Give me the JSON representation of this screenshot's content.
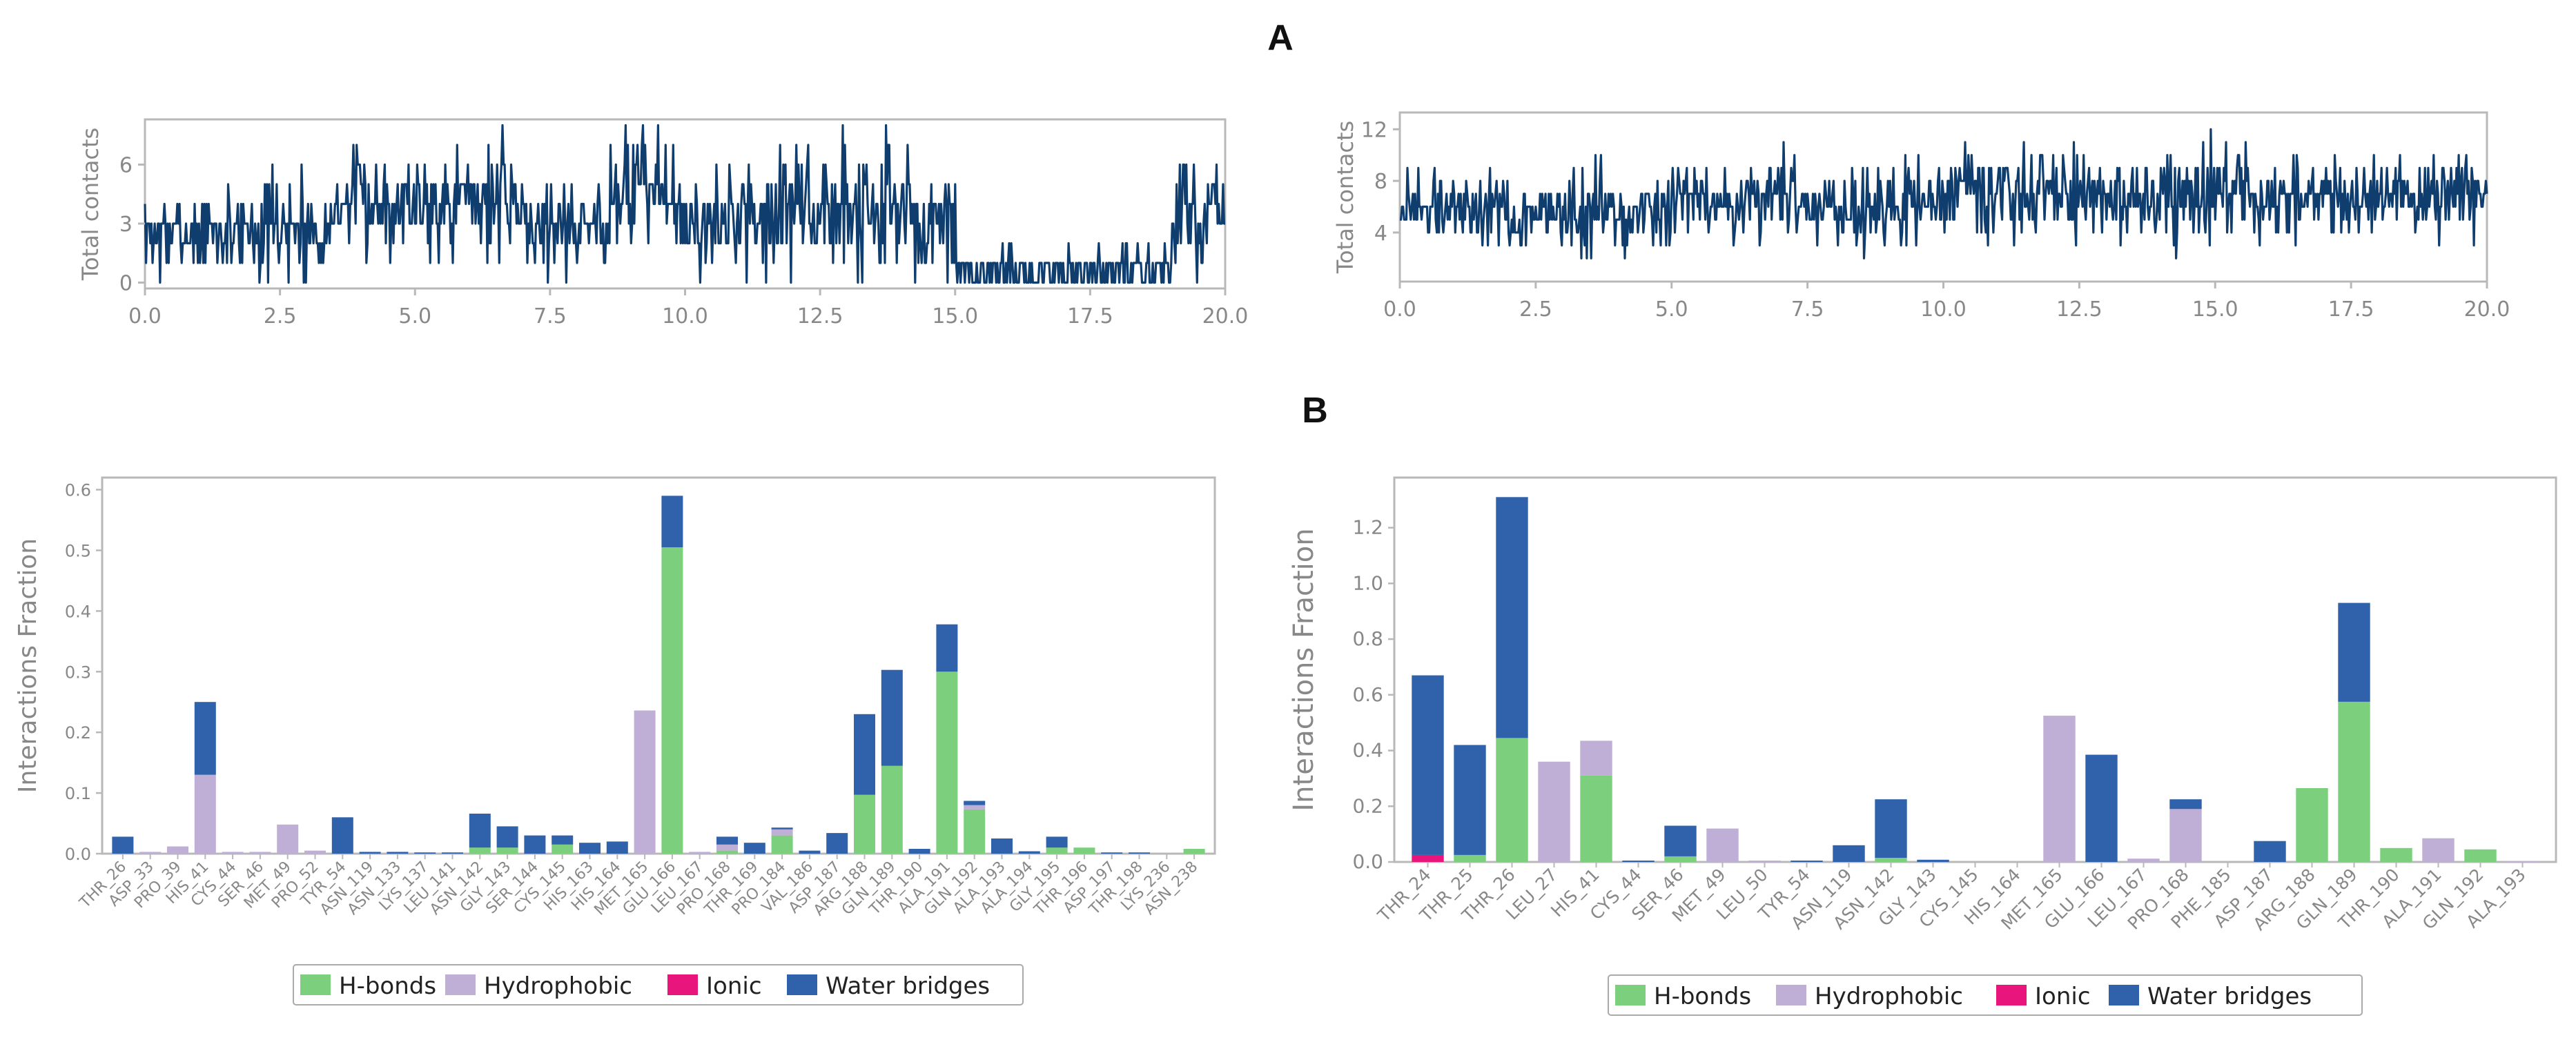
{
  "panels": {
    "A": "A",
    "B": "B"
  },
  "colors": {
    "line": "#0e3d6e",
    "hbonds": "#7ccf7c",
    "hydrophobic": "#bfaed6",
    "ionic": "#e8157d",
    "water": "#2f62ab",
    "frame": "#b8b8b8",
    "tick": "#888888"
  },
  "legend": {
    "hbonds": "H-bonds",
    "hydrophobic": "Hydrophobic",
    "ionic": "Ionic",
    "water": "Water bridges"
  },
  "chart_data": [
    {
      "id": "contacts-left",
      "type": "line",
      "title": "",
      "xlabel": "",
      "ylabel": "Total contacts",
      "xlim": [
        0,
        20
      ],
      "ylim": [
        -0.3,
        8.3
      ],
      "xticks": [
        0.0,
        2.5,
        5.0,
        7.5,
        10.0,
        12.5,
        15.0,
        17.5,
        20.0
      ],
      "xtick_labels": [
        "0.0",
        "2.5",
        "5.0",
        "7.5",
        "10.0",
        "12.5",
        "15.0",
        "17.5",
        "20.0"
      ],
      "yticks": [
        0,
        3,
        6
      ],
      "ytick_labels": [
        "0",
        "3",
        "6"
      ],
      "grid": false,
      "segments": [
        {
          "x0": 0.0,
          "x1": 1.5,
          "mean": 2.5,
          "sd": 1.0
        },
        {
          "x0": 1.5,
          "x1": 3.5,
          "mean": 2.8,
          "sd": 1.2
        },
        {
          "x0": 3.5,
          "x1": 7.0,
          "mean": 4.2,
          "sd": 1.4
        },
        {
          "x0": 7.0,
          "x1": 8.6,
          "mean": 3.0,
          "sd": 1.2
        },
        {
          "x0": 8.6,
          "x1": 9.8,
          "mean": 5.0,
          "sd": 1.5
        },
        {
          "x0": 9.8,
          "x1": 11.0,
          "mean": 3.0,
          "sd": 1.3
        },
        {
          "x0": 11.0,
          "x1": 14.2,
          "mean": 3.8,
          "sd": 1.6
        },
        {
          "x0": 14.2,
          "x1": 15.0,
          "mean": 2.5,
          "sd": 1.5
        },
        {
          "x0": 15.0,
          "x1": 19.0,
          "mean": 0.5,
          "sd": 0.6
        },
        {
          "x0": 19.0,
          "x1": 20.0,
          "mean": 3.5,
          "sd": 1.4
        }
      ]
    },
    {
      "id": "contacts-right",
      "type": "line",
      "title": "",
      "xlabel": "",
      "ylabel": "Total contacts",
      "xlim": [
        0,
        20
      ],
      "ylim": [
        0.2,
        13.3
      ],
      "xticks": [
        0.0,
        2.5,
        5.0,
        7.5,
        10.0,
        12.5,
        15.0,
        17.5,
        20.0
      ],
      "xtick_labels": [
        "0.0",
        "2.5",
        "5.0",
        "7.5",
        "10.0",
        "12.5",
        "15.0",
        "17.5",
        "20.0"
      ],
      "yticks": [
        4,
        8,
        12
      ],
      "ytick_labels": [
        "4",
        "8",
        "12"
      ],
      "grid": false,
      "segments": [
        {
          "x0": 0.0,
          "x1": 2.0,
          "mean": 6.0,
          "sd": 1.5
        },
        {
          "x0": 2.0,
          "x1": 5.0,
          "mean": 5.5,
          "sd": 1.7
        },
        {
          "x0": 5.0,
          "x1": 10.0,
          "mean": 6.2,
          "sd": 1.6
        },
        {
          "x0": 10.0,
          "x1": 15.0,
          "mean": 6.8,
          "sd": 1.7
        },
        {
          "x0": 15.0,
          "x1": 20.0,
          "mean": 7.0,
          "sd": 1.6
        }
      ]
    },
    {
      "id": "interactions-left",
      "type": "bar",
      "stacked": true,
      "title": "",
      "xlabel": "",
      "ylabel": "Interactions Fraction",
      "ylim": [
        0,
        0.62
      ],
      "yticks": [
        0.0,
        0.1,
        0.2,
        0.3,
        0.4,
        0.5,
        0.6
      ],
      "ytick_labels": [
        "0.0",
        "0.1",
        "0.2",
        "0.3",
        "0.4",
        "0.5",
        "0.6"
      ],
      "grid": false,
      "legend_position": "bottom-center",
      "categories": [
        "THR_26",
        "ASP_33",
        "PRO_39",
        "HIS_41",
        "CYS_44",
        "SER_46",
        "MET_49",
        "PRO_52",
        "TYR_54",
        "ASN_119",
        "ASN_133",
        "LYS_137",
        "LEU_141",
        "ASN_142",
        "GLY_143",
        "SER_144",
        "CYS_145",
        "HIS_163",
        "HIS_164",
        "MET_165",
        "GLU_166",
        "LEU_167",
        "PRO_168",
        "THR_169",
        "PRO_184",
        "VAL_186",
        "ASP_187",
        "ARG_188",
        "GLN_189",
        "THR_190",
        "ALA_191",
        "GLN_192",
        "ALA_193",
        "ALA_194",
        "GLY_195",
        "THR_196",
        "ASP_197",
        "THR_198",
        "LYS_236",
        "ASN_238"
      ],
      "series": [
        {
          "name": "H-bonds",
          "color_key": "hbonds",
          "values": [
            0,
            0,
            0,
            0,
            0,
            0,
            0,
            0,
            0,
            0,
            0,
            0,
            0,
            0.01,
            0.01,
            0,
            0.015,
            0,
            0,
            0,
            0.505,
            0,
            0.005,
            0,
            0.03,
            0,
            0,
            0.097,
            0.145,
            0,
            0.3,
            0.073,
            0,
            0,
            0.01,
            0.01,
            0,
            0,
            0,
            0.008
          ]
        },
        {
          "name": "Hydrophobic",
          "color_key": "hydrophobic",
          "values": [
            0,
            0.003,
            0.012,
            0.13,
            0.003,
            0.003,
            0.048,
            0.005,
            0,
            0,
            0,
            0,
            0,
            0,
            0,
            0,
            0,
            0,
            0,
            0.236,
            0,
            0.003,
            0.01,
            0,
            0.01,
            0,
            0,
            0,
            0,
            0,
            0,
            0.007,
            0,
            0,
            0,
            0,
            0,
            0,
            0,
            0
          ]
        },
        {
          "name": "Ionic",
          "color_key": "ionic",
          "values": [
            0,
            0,
            0,
            0,
            0,
            0,
            0,
            0,
            0,
            0,
            0,
            0,
            0,
            0,
            0,
            0,
            0,
            0,
            0,
            0,
            0,
            0,
            0,
            0,
            0,
            0,
            0,
            0,
            0,
            0,
            0,
            0,
            0,
            0,
            0,
            0,
            0,
            0,
            0,
            0
          ]
        },
        {
          "name": "Water bridges",
          "color_key": "water",
          "values": [
            0.028,
            0,
            0,
            0.12,
            0,
            0,
            0,
            0,
            0.06,
            0.003,
            0.003,
            0.002,
            0.002,
            0.056,
            0.035,
            0.03,
            0.015,
            0.018,
            0.02,
            0,
            0.085,
            0,
            0.013,
            0.018,
            0.003,
            0.005,
            0.034,
            0.133,
            0.158,
            0.008,
            0.078,
            0.007,
            0.025,
            0.004,
            0.018,
            0,
            0.002,
            0.002,
            0,
            0
          ]
        }
      ]
    },
    {
      "id": "interactions-right",
      "type": "bar",
      "stacked": true,
      "title": "",
      "xlabel": "",
      "ylabel": "Interactions Fraction",
      "ylim": [
        0,
        1.38
      ],
      "yticks": [
        0.0,
        0.2,
        0.4,
        0.6,
        0.8,
        1.0,
        1.2
      ],
      "ytick_labels": [
        "0.0",
        "0.2",
        "0.4",
        "0.6",
        "0.8",
        "1.0",
        "1.2"
      ],
      "grid": false,
      "legend_position": "bottom-center",
      "categories": [
        "THR_24",
        "THR_25",
        "THR_26",
        "LEU_27",
        "HIS_41",
        "CYS_44",
        "SER_46",
        "MET_49",
        "LEU_50",
        "TYR_54",
        "ASN_119",
        "ASN_142",
        "GLY_143",
        "CYS_145",
        "HIS_164",
        "MET_165",
        "GLU_166",
        "LEU_167",
        "PRO_168",
        "PHE_185",
        "ASP_187",
        "ARG_188",
        "GLN_189",
        "THR_190",
        "ALA_191",
        "GLN_192",
        "ALA_193"
      ],
      "series": [
        {
          "name": "H-bonds",
          "color_key": "hbonds",
          "values": [
            0,
            0.025,
            0.445,
            0,
            0.31,
            0,
            0.02,
            0,
            0,
            0,
            0,
            0.015,
            0,
            0,
            0,
            0,
            0,
            0,
            0,
            0,
            0,
            0.265,
            0.575,
            0.05,
            0,
            0.045,
            0
          ]
        },
        {
          "name": "Hydrophobic",
          "color_key": "hydrophobic",
          "values": [
            0,
            0,
            0,
            0.36,
            0.125,
            0,
            0,
            0.12,
            0.005,
            0,
            0,
            0,
            0,
            0,
            0,
            0.525,
            0,
            0.012,
            0.19,
            0,
            0,
            0,
            0,
            0,
            0.085,
            0,
            0.003
          ]
        },
        {
          "name": "Ionic",
          "color_key": "ionic",
          "values": [
            0.025,
            0,
            0,
            0,
            0,
            0,
            0,
            0,
            0,
            0,
            0,
            0,
            0,
            0,
            0,
            0,
            0,
            0,
            0,
            0,
            0,
            0,
            0,
            0,
            0,
            0,
            0
          ]
        },
        {
          "name": "Water bridges",
          "color_key": "water",
          "values": [
            0.645,
            0.395,
            0.865,
            0,
            0,
            0.005,
            0.11,
            0,
            0,
            0.005,
            0.06,
            0.21,
            0.008,
            0,
            0,
            0,
            0.385,
            0,
            0.035,
            0,
            0.075,
            0,
            0.355,
            0,
            0,
            0,
            0
          ]
        }
      ]
    }
  ]
}
